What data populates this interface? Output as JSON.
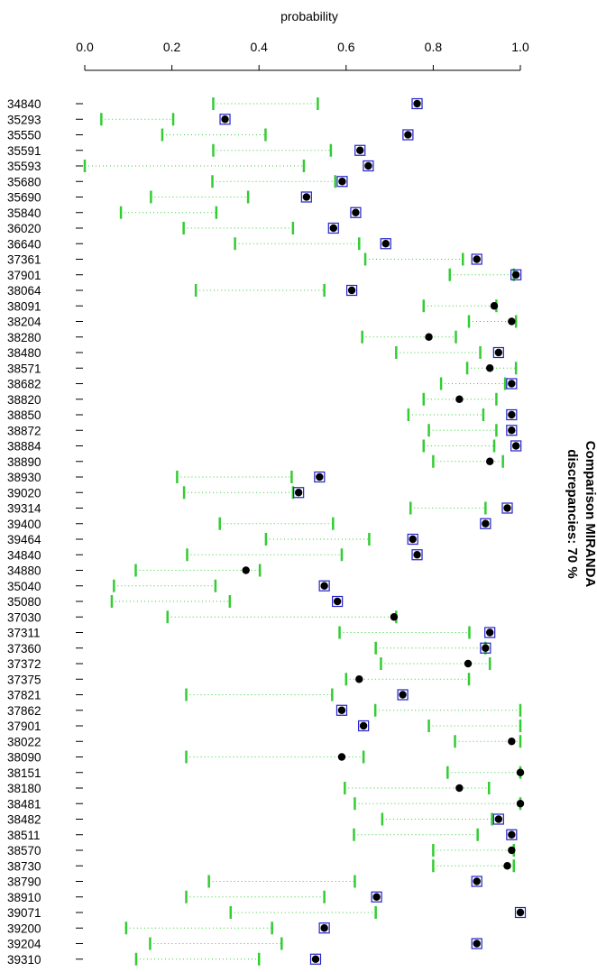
{
  "chart_data": {
    "type": "dot-interval",
    "xlabel": "probability",
    "xlim": [
      0.0,
      1.0
    ],
    "xticks": [
      "0.0",
      "0.2",
      "0.4",
      "0.6",
      "0.8",
      "1.0"
    ],
    "side_title_line1": "Comparison MIRANDA",
    "side_title_line2": "discrepancies: 70 %",
    "colors": {
      "interval": "#33cc33",
      "box": "#2222cc",
      "dot": "#000000"
    },
    "rows": [
      {
        "id": "34840",
        "low": 0.295,
        "high": 0.535,
        "p": 0.763,
        "boxed": true
      },
      {
        "id": "35293",
        "low": 0.038,
        "high": 0.203,
        "p": 0.322,
        "boxed": true
      },
      {
        "id": "35550",
        "low": 0.178,
        "high": 0.415,
        "p": 0.742,
        "boxed": true
      },
      {
        "id": "35591",
        "low": 0.295,
        "high": 0.565,
        "p": 0.632,
        "boxed": true
      },
      {
        "id": "35593",
        "low": 0.0,
        "high": 0.503,
        "p": 0.651,
        "boxed": true
      },
      {
        "id": "35680",
        "low": 0.293,
        "high": 0.575,
        "p": 0.591,
        "boxed": true
      },
      {
        "id": "35690",
        "low": 0.152,
        "high": 0.375,
        "p": 0.509,
        "boxed": true
      },
      {
        "id": "35840",
        "low": 0.083,
        "high": 0.302,
        "p": 0.622,
        "boxed": true
      },
      {
        "id": "36020",
        "low": 0.227,
        "high": 0.478,
        "p": 0.571,
        "boxed": true
      },
      {
        "id": "36640",
        "low": 0.345,
        "high": 0.63,
        "p": 0.691,
        "boxed": true
      },
      {
        "id": "37361",
        "low": 0.644,
        "high": 0.868,
        "p": 0.9,
        "boxed": true
      },
      {
        "id": "37901",
        "low": 0.838,
        "high": 0.985,
        "p": 0.99,
        "boxed": true
      },
      {
        "id": "38064",
        "low": 0.255,
        "high": 0.55,
        "p": 0.613,
        "boxed": true
      },
      {
        "id": "38091",
        "low": 0.778,
        "high": 0.945,
        "p": 0.94,
        "boxed": false
      },
      {
        "id": "38204",
        "low": 0.882,
        "high": 0.99,
        "p": 0.98,
        "boxed": false
      },
      {
        "id": "38280",
        "low": 0.637,
        "high": 0.852,
        "p": 0.79,
        "boxed": false
      },
      {
        "id": "38480",
        "low": 0.715,
        "high": 0.908,
        "p": 0.95,
        "boxed": true
      },
      {
        "id": "38571",
        "low": 0.878,
        "high": 0.99,
        "p": 0.93,
        "boxed": false
      },
      {
        "id": "38682",
        "low": 0.818,
        "high": 0.965,
        "p": 0.98,
        "boxed": true
      },
      {
        "id": "38820",
        "low": 0.778,
        "high": 0.945,
        "p": 0.86,
        "boxed": false
      },
      {
        "id": "38850",
        "low": 0.743,
        "high": 0.915,
        "p": 0.98,
        "boxed": true
      },
      {
        "id": "38872",
        "low": 0.79,
        "high": 0.945,
        "p": 0.98,
        "boxed": true
      },
      {
        "id": "38884",
        "low": 0.778,
        "high": 0.94,
        "p": 0.99,
        "boxed": true
      },
      {
        "id": "38890",
        "low": 0.8,
        "high": 0.96,
        "p": 0.93,
        "boxed": false
      },
      {
        "id": "38930",
        "low": 0.212,
        "high": 0.475,
        "p": 0.539,
        "boxed": true
      },
      {
        "id": "39020",
        "low": 0.228,
        "high": 0.478,
        "p": 0.491,
        "boxed": true
      },
      {
        "id": "39314",
        "low": 0.748,
        "high": 0.92,
        "p": 0.97,
        "boxed": true
      },
      {
        "id": "39400",
        "low": 0.31,
        "high": 0.57,
        "p": 0.92,
        "boxed": true
      },
      {
        "id": "39464",
        "low": 0.416,
        "high": 0.653,
        "p": 0.753,
        "boxed": true
      },
      {
        "id": "34840",
        "low": 0.235,
        "high": 0.59,
        "p": 0.763,
        "boxed": true
      },
      {
        "id": "34880",
        "low": 0.117,
        "high": 0.402,
        "p": 0.37,
        "boxed": false
      },
      {
        "id": "35040",
        "low": 0.067,
        "high": 0.3,
        "p": 0.55,
        "boxed": true
      },
      {
        "id": "35080",
        "low": 0.062,
        "high": 0.333,
        "p": 0.58,
        "boxed": true
      },
      {
        "id": "37030",
        "low": 0.19,
        "high": 0.715,
        "p": 0.71,
        "boxed": false
      },
      {
        "id": "37311",
        "low": 0.585,
        "high": 0.883,
        "p": 0.93,
        "boxed": true
      },
      {
        "id": "37360",
        "low": 0.668,
        "high": 0.92,
        "p": 0.92,
        "boxed": true
      },
      {
        "id": "37372",
        "low": 0.68,
        "high": 0.93,
        "p": 0.88,
        "boxed": false
      },
      {
        "id": "37375",
        "low": 0.6,
        "high": 0.882,
        "p": 0.63,
        "boxed": false
      },
      {
        "id": "37821",
        "low": 0.233,
        "high": 0.568,
        "p": 0.73,
        "boxed": true
      },
      {
        "id": "37862",
        "low": 0.667,
        "high": 1.0,
        "p": 0.59,
        "boxed": true
      },
      {
        "id": "37901",
        "low": 0.79,
        "high": 1.0,
        "p": 0.64,
        "boxed": true
      },
      {
        "id": "38022",
        "low": 0.85,
        "high": 1.0,
        "p": 0.98,
        "boxed": false
      },
      {
        "id": "38090",
        "low": 0.233,
        "high": 0.64,
        "p": 0.59,
        "boxed": false
      },
      {
        "id": "38151",
        "low": 0.833,
        "high": 1.0,
        "p": 1.0,
        "boxed": false
      },
      {
        "id": "38180",
        "low": 0.597,
        "high": 0.928,
        "p": 0.86,
        "boxed": false
      },
      {
        "id": "38481",
        "low": 0.62,
        "high": 1.0,
        "p": 1.0,
        "boxed": false
      },
      {
        "id": "38482",
        "low": 0.683,
        "high": 0.935,
        "p": 0.95,
        "boxed": true
      },
      {
        "id": "38511",
        "low": 0.618,
        "high": 0.902,
        "p": 0.98,
        "boxed": true
      },
      {
        "id": "38570",
        "low": 0.8,
        "high": 0.985,
        "p": 0.98,
        "boxed": false
      },
      {
        "id": "38730",
        "low": 0.8,
        "high": 0.985,
        "p": 0.97,
        "boxed": false
      },
      {
        "id": "38790",
        "low": 0.285,
        "high": 0.62,
        "p": 0.9,
        "boxed": true
      },
      {
        "id": "38910",
        "low": 0.233,
        "high": 0.55,
        "p": 0.67,
        "boxed": true
      },
      {
        "id": "39071",
        "low": 0.335,
        "high": 0.668,
        "p": 1.0,
        "boxed": true
      },
      {
        "id": "39200",
        "low": 0.095,
        "high": 0.43,
        "p": 0.55,
        "boxed": true
      },
      {
        "id": "39204",
        "low": 0.15,
        "high": 0.452,
        "p": 0.9,
        "boxed": true
      },
      {
        "id": "39310",
        "low": 0.118,
        "high": 0.4,
        "p": 0.53,
        "boxed": true
      }
    ]
  }
}
